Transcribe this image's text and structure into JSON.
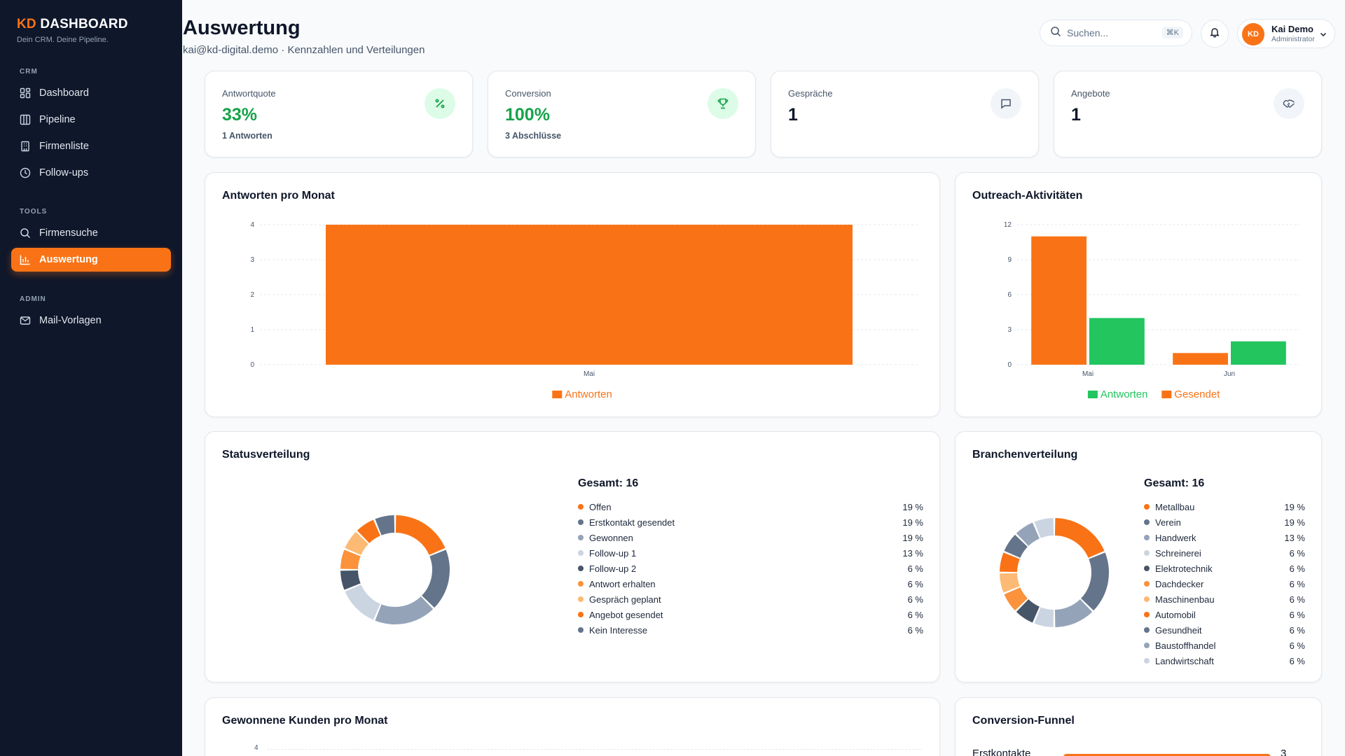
{
  "brand": {
    "prefix": "KD",
    "name": "DASHBOARD",
    "tagline": "Dein CRM. Deine Pipeline."
  },
  "sidebar": {
    "sections": [
      {
        "label": "CRM",
        "items": [
          {
            "label": "Dashboard",
            "icon": "grid-icon"
          },
          {
            "label": "Pipeline",
            "icon": "columns-icon"
          },
          {
            "label": "Firmenliste",
            "icon": "building-icon"
          },
          {
            "label": "Follow-ups",
            "icon": "clock-icon"
          }
        ]
      },
      {
        "label": "TOOLS",
        "items": [
          {
            "label": "Firmensuche",
            "icon": "search-icon"
          },
          {
            "label": "Auswertung",
            "icon": "bar-chart-icon",
            "active": true
          }
        ]
      },
      {
        "label": "ADMIN",
        "items": [
          {
            "label": "Mail-Vorlagen",
            "icon": "mail-icon"
          }
        ]
      }
    ]
  },
  "header": {
    "title": "Auswertung",
    "subtitle": "kai@kd-digital.demo · Kennzahlen und Verteilungen",
    "search_placeholder": "Suchen...",
    "search_shortcut": "⌘K",
    "user": {
      "initials": "KD",
      "name": "Kai Demo",
      "role": "Administrator"
    }
  },
  "kpis": [
    {
      "label": "Antwortquote",
      "value": "33%",
      "sub": "1 Antworten",
      "icon": "percent-icon"
    },
    {
      "label": "Conversion",
      "value": "100%",
      "sub": "3 Abschlüsse",
      "icon": "trophy-icon"
    },
    {
      "label": "Gespräche",
      "value": "1",
      "sub": "",
      "icon": "message-icon"
    },
    {
      "label": "Angebote",
      "value": "1",
      "sub": "",
      "icon": "handshake-icon"
    }
  ],
  "colors": {
    "orange": "#f97316",
    "green": "#22c55e"
  },
  "charts": {
    "antworten_pro_monat": {
      "title": "Antworten pro Monat",
      "chart_data": {
        "type": "bar",
        "categories": [
          "Mai"
        ],
        "series": [
          {
            "name": "Antworten",
            "values": [
              4
            ],
            "color": "#f97316"
          }
        ],
        "yticks": [
          "0",
          "1",
          "2",
          "3",
          "4"
        ],
        "ylim": [
          0,
          4
        ],
        "legend": "bottom"
      }
    },
    "outreach": {
      "title": "Outreach-Aktivitäten",
      "chart_data": {
        "type": "bar",
        "categories": [
          "Mai",
          "Jun"
        ],
        "series": [
          {
            "name": "Gesendet",
            "values": [
              11,
              1
            ],
            "color": "#f97316"
          },
          {
            "name": "Antworten",
            "values": [
              4,
              2
            ],
            "color": "#22c55e"
          }
        ],
        "legend_order": [
          "Antworten",
          "Gesendet"
        ],
        "yticks": [
          "0",
          "3",
          "6",
          "9",
          "12"
        ],
        "ylim": [
          0,
          12
        ],
        "legend": "bottom"
      }
    },
    "statusverteilung": {
      "title": "Statusverteilung",
      "total_label": "Gesamt: 16",
      "chart_data": {
        "type": "pie",
        "total": 16,
        "slices": [
          {
            "label": "Offen",
            "count": 3,
            "pct": "19 %",
            "color": "#f97316"
          },
          {
            "label": "Erstkontakt gesendet",
            "count": 3,
            "pct": "19 %",
            "color": "#64748b"
          },
          {
            "label": "Gewonnen",
            "count": 3,
            "pct": "19 %",
            "color": "#94a3b8"
          },
          {
            "label": "Follow-up 1",
            "count": 2,
            "pct": "13 %",
            "color": "#cbd5e1"
          },
          {
            "label": "Follow-up 2",
            "count": 1,
            "pct": "6 %",
            "color": "#475569"
          },
          {
            "label": "Antwort erhalten",
            "count": 1,
            "pct": "6 %",
            "color": "#fb923c"
          },
          {
            "label": "Gespräch geplant",
            "count": 1,
            "pct": "6 %",
            "color": "#fdba74"
          },
          {
            "label": "Angebot gesendet",
            "count": 1,
            "pct": "6 %",
            "color": "#f97316"
          },
          {
            "label": "Kein Interesse",
            "count": 1,
            "pct": "6 %",
            "color": "#64748b"
          }
        ]
      }
    },
    "branchenverteilung": {
      "title": "Branchenverteilung",
      "total_label": "Gesamt: 16",
      "chart_data": {
        "type": "pie",
        "total": 16,
        "slices": [
          {
            "label": "Metallbau",
            "count": 3,
            "pct": "19 %",
            "color": "#f97316"
          },
          {
            "label": "Verein",
            "count": 3,
            "pct": "19 %",
            "color": "#64748b"
          },
          {
            "label": "Handwerk",
            "count": 2,
            "pct": "13 %",
            "color": "#94a3b8"
          },
          {
            "label": "Schreinerei",
            "count": 1,
            "pct": "6 %",
            "color": "#cbd5e1"
          },
          {
            "label": "Elektrotechnik",
            "count": 1,
            "pct": "6 %",
            "color": "#475569"
          },
          {
            "label": "Dachdecker",
            "count": 1,
            "pct": "6 %",
            "color": "#fb923c"
          },
          {
            "label": "Maschinenbau",
            "count": 1,
            "pct": "6 %",
            "color": "#fdba74"
          },
          {
            "label": "Automobil",
            "count": 1,
            "pct": "6 %",
            "color": "#f97316"
          },
          {
            "label": "Gesundheit",
            "count": 1,
            "pct": "6 %",
            "color": "#64748b"
          },
          {
            "label": "Baustoffhandel",
            "count": 1,
            "pct": "6 %",
            "color": "#94a3b8"
          },
          {
            "label": "Landwirtschaft",
            "count": 1,
            "pct": "6 %",
            "color": "#cbd5e1"
          }
        ]
      }
    },
    "gewonnene_kunden": {
      "title": "Gewonnene Kunden pro Monat",
      "yticks_visible": [
        "4"
      ]
    },
    "funnel": {
      "title": "Conversion-Funnel",
      "rows": [
        {
          "label": "Erstkontakte",
          "value": 3,
          "fill_fraction": 1.0
        }
      ]
    }
  }
}
